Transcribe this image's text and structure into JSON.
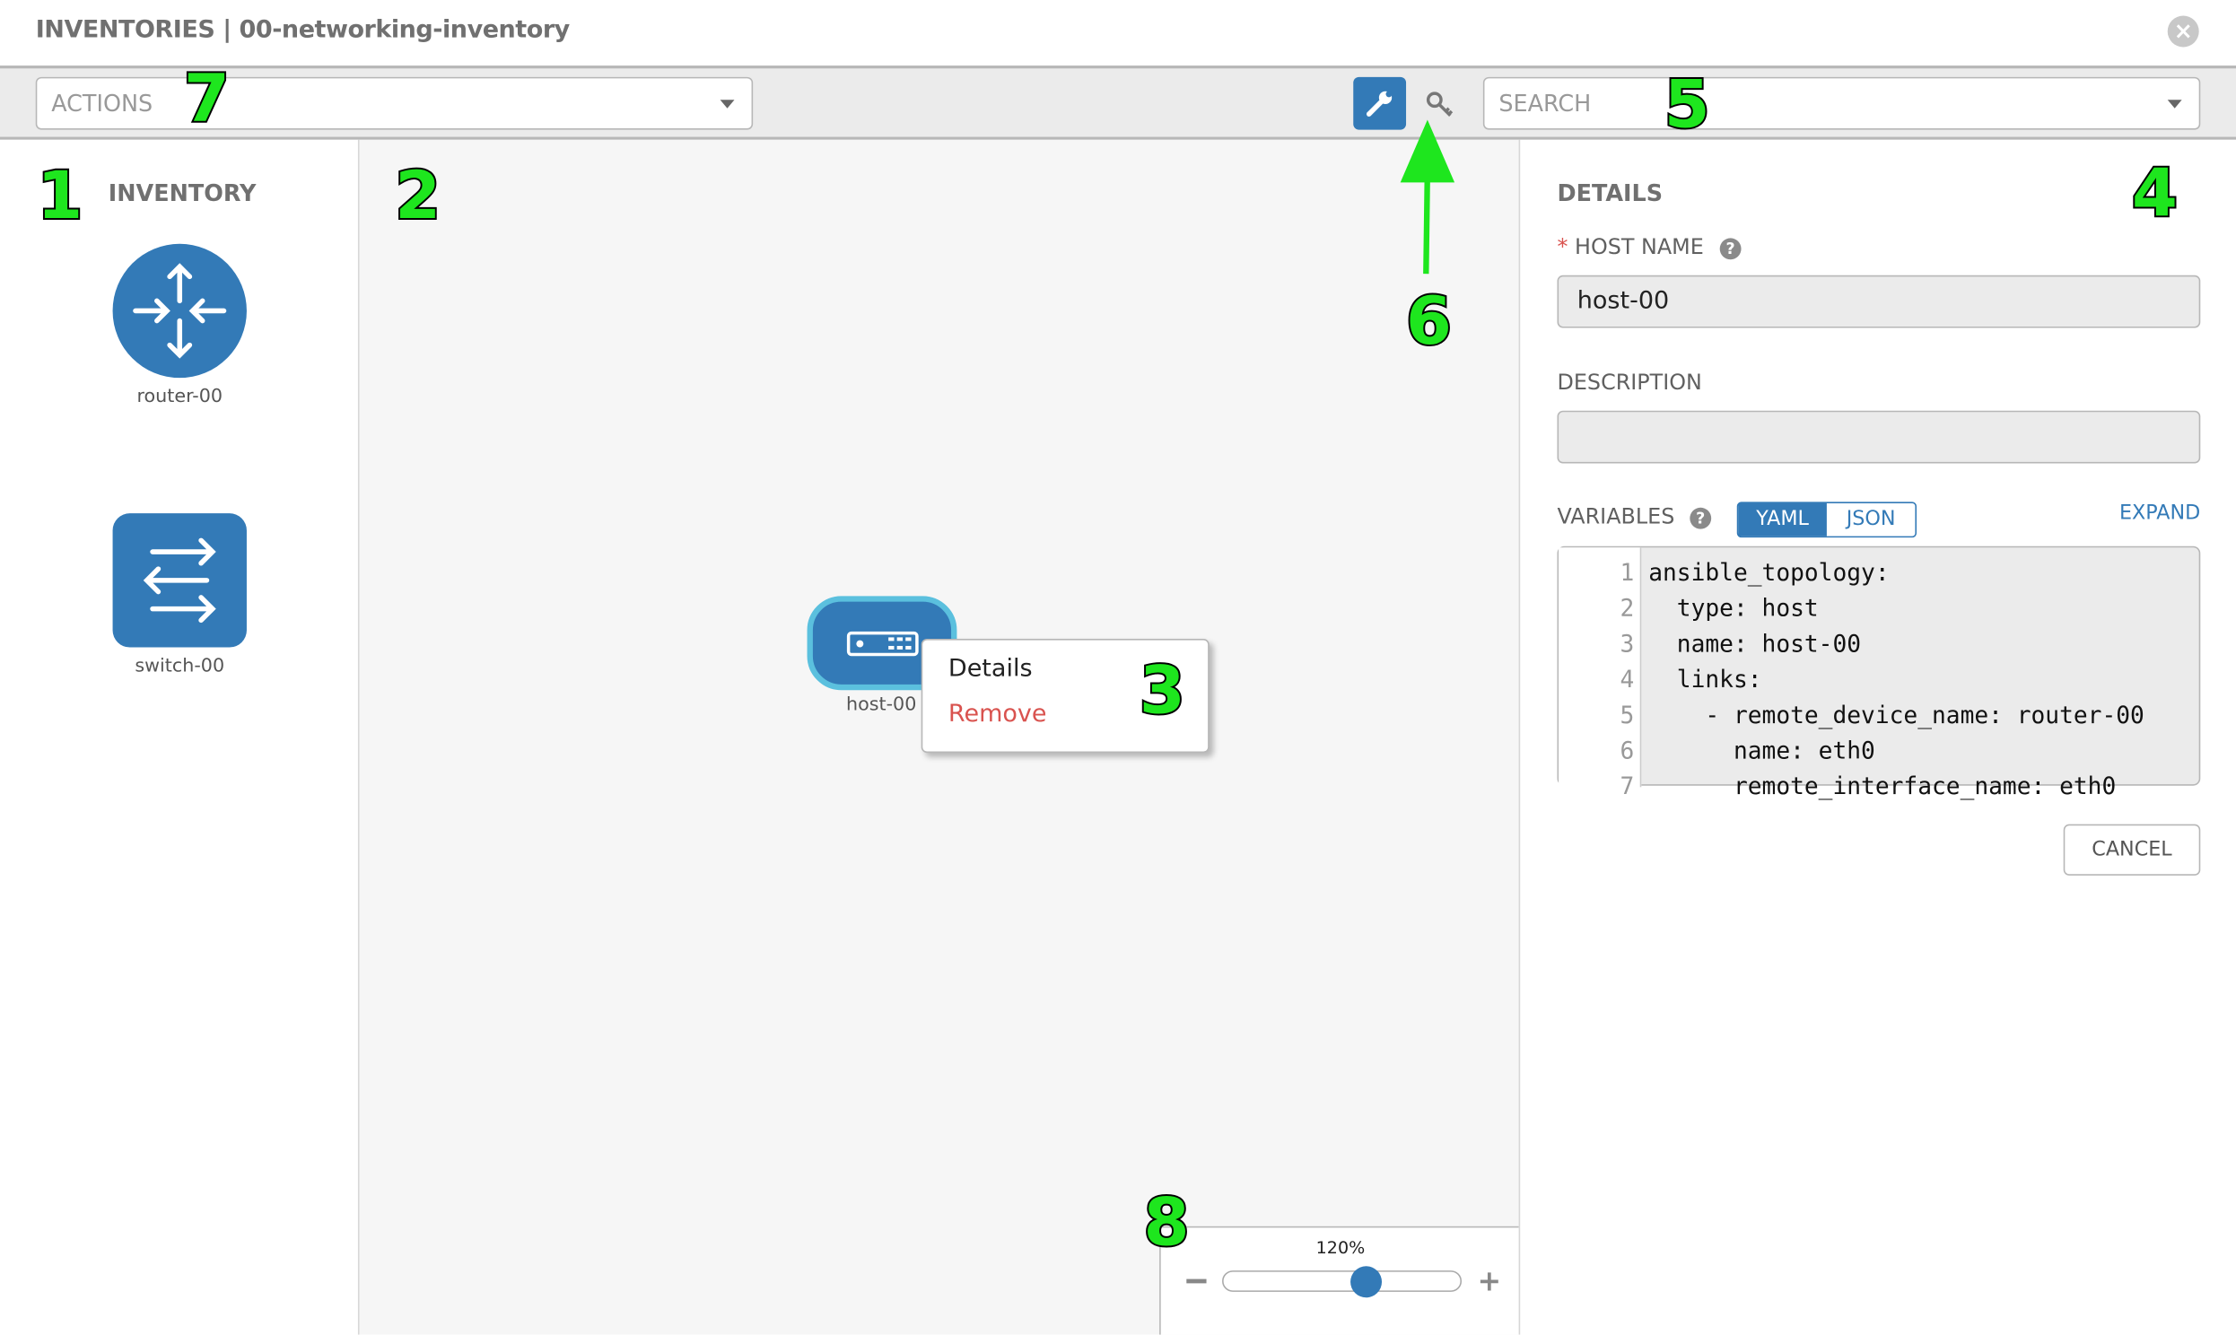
{
  "header": {
    "title": "INVENTORIES | 00-networking-inventory",
    "close_icon": "close-circle-icon"
  },
  "toolbar": {
    "actions_placeholder": "ACTIONS",
    "search_placeholder": "SEARCH",
    "wrench_icon": "wrench-icon",
    "key_icon": "key-icon",
    "active_color": "#337ab7"
  },
  "inventory": {
    "title": "INVENTORY",
    "items": [
      {
        "label": "router-00",
        "icon": "router-icon"
      },
      {
        "label": "switch-00",
        "icon": "switch-icon"
      }
    ]
  },
  "canvas": {
    "node": {
      "label": "host-00",
      "icon": "host-server-icon"
    },
    "context_menu": {
      "items": [
        {
          "label": "Details"
        },
        {
          "label": "Remove",
          "color": "#d9534f"
        }
      ]
    },
    "zoom": {
      "label": "120%",
      "value_percent": 120,
      "slider_fraction": 0.6
    }
  },
  "details": {
    "title": "DETAILS",
    "host_name_label": "HOST NAME",
    "required_mark": "*",
    "host_name_value": "host-00",
    "description_label": "DESCRIPTION",
    "description_value": "",
    "variables_label": "VARIABLES",
    "toggle": {
      "yaml": "YAML",
      "json": "JSON",
      "selected": "YAML"
    },
    "expand": "EXPAND",
    "code_lines": [
      "ansible_topology:",
      "  type: host",
      "  name: host-00",
      "  links:",
      "    - remote_device_name: router-00",
      "      name: eth0",
      "      remote_interface_name: eth0"
    ],
    "line_numbers": [
      "1",
      "2",
      "3",
      "4",
      "5",
      "6",
      "7"
    ],
    "cancel": "CANCEL"
  },
  "callouts": [
    "1",
    "2",
    "3",
    "4",
    "5",
    "6",
    "7",
    "8"
  ]
}
